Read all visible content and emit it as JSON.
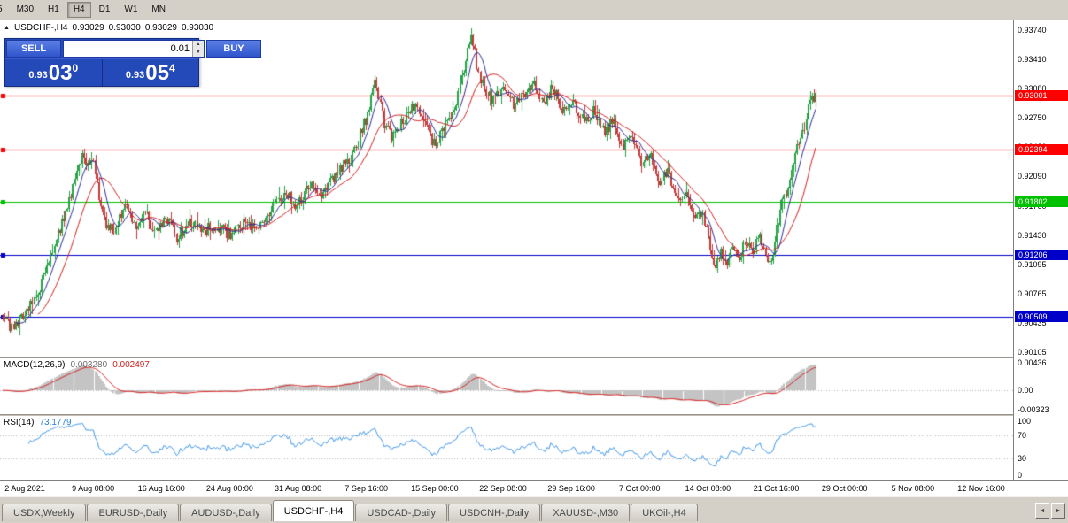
{
  "toolbar": {
    "timeframes": [
      "5",
      "M30",
      "H1",
      "H4",
      "D1",
      "W1",
      "MN"
    ],
    "active": "H4"
  },
  "chart_header": {
    "symbol": "USDCHF-,H4",
    "open": "0.93029",
    "high": "0.93030",
    "low": "0.93029",
    "close": "0.93030"
  },
  "trade_panel": {
    "collapse_icon": "▲",
    "sell_label": "SELL",
    "buy_label": "BUY",
    "volume": "0.01",
    "spinner_up": "▲",
    "spinner_down": "▼",
    "bid": {
      "prefix": "0.93",
      "big": "03",
      "sup": "0"
    },
    "ask": {
      "prefix": "0.93",
      "big": "05",
      "sup": "4"
    }
  },
  "tabs": {
    "items": [
      "USDX,Weekly",
      "EURUSD-,Daily",
      "AUDUSD-,Daily",
      "USDCHF-,H4",
      "USDCAD-,Daily",
      "USDCNH-,Daily",
      "XAUUSD-,M30",
      "UKOil-,H4"
    ],
    "active_index": 3,
    "scroll_left_icon": "◄",
    "scroll_right_icon": "►"
  },
  "chart_data": {
    "type": "candlestick",
    "symbol": "USDCHF-",
    "timeframe": "H4",
    "title": "USDCHF-,H4",
    "ohlc_current": {
      "open": 0.93029,
      "high": 0.9303,
      "low": 0.93029,
      "close": 0.9303
    },
    "ylim": [
      0.9006,
      0.9385
    ],
    "bars": 440,
    "data_width_frac": 0.808,
    "colors": {
      "up": "#26a248",
      "down": "#c23b3b",
      "ma_fast": "#2d2d96",
      "ma_slow": "#d02020",
      "macd_hist": "#c4c4c4",
      "macd_signal": "#d92222",
      "rsi_line": "#3d96e8"
    },
    "levels": [
      {
        "value": 0.93001,
        "label": "0.93001",
        "color": "#FF0000"
      },
      {
        "value": 0.92394,
        "label": "0.92394",
        "color": "#FF0000"
      },
      {
        "value": 0.91802,
        "label": "0.91802",
        "color": "#00C000"
      },
      {
        "value": 0.91206,
        "label": "0.91206",
        "color": "#0000C8"
      },
      {
        "value": 0.90509,
        "label": "0.90509",
        "color": "#0000C8"
      }
    ],
    "price_axis_labels": [
      "0.93740",
      "0.93410",
      "0.93080",
      "0.92750",
      "0.92420",
      "0.92090",
      "0.91760",
      "0.91430",
      "0.91095",
      "0.90765",
      "0.90435",
      "0.90105"
    ],
    "time_labels": [
      "2 Aug 2021",
      "9 Aug 08:00",
      "16 Aug 16:00",
      "24 Aug 00:00",
      "31 Aug 08:00",
      "7 Sep 16:00",
      "15 Sep 00:00",
      "22 Sep 08:00",
      "29 Sep 16:00",
      "7 Oct 00:00",
      "14 Oct 08:00",
      "21 Oct 16:00",
      "29 Oct 00:00",
      "5 Nov 08:00",
      "12 Nov 16:00"
    ],
    "moving_averages": [
      {
        "period": 8,
        "color": "#2d2d96"
      },
      {
        "period": 20,
        "color": "#d02020"
      }
    ],
    "indicators": {
      "macd": {
        "label": "MACD(12,26,9)",
        "value_main": "0.003280",
        "value_signal": "0.002497",
        "axis_labels": [
          {
            "value": 0.00436,
            "text": "0.00436"
          },
          {
            "value": 0,
            "text": "0.00"
          },
          {
            "value": -0.00323,
            "text": "-0.00323"
          }
        ]
      },
      "rsi": {
        "label": "RSI(14)",
        "value": "73.1779",
        "period": 14,
        "axis_labels": [
          {
            "value": 100,
            "text": "100"
          },
          {
            "value": 70,
            "text": "70"
          },
          {
            "value": 30,
            "text": "30"
          },
          {
            "value": 0,
            "text": "0"
          }
        ],
        "guides": [
          70,
          30
        ]
      }
    },
    "price_path": [
      [
        0.0,
        0.9055
      ],
      [
        0.01,
        0.9038
      ],
      [
        0.022,
        0.905
      ],
      [
        0.04,
        0.9072
      ],
      [
        0.06,
        0.912
      ],
      [
        0.08,
        0.9178
      ],
      [
        0.098,
        0.9232
      ],
      [
        0.112,
        0.922
      ],
      [
        0.125,
        0.9158
      ],
      [
        0.138,
        0.9145
      ],
      [
        0.15,
        0.918
      ],
      [
        0.163,
        0.915
      ],
      [
        0.175,
        0.9172
      ],
      [
        0.188,
        0.9142
      ],
      [
        0.2,
        0.9165
      ],
      [
        0.215,
        0.914
      ],
      [
        0.23,
        0.9158
      ],
      [
        0.245,
        0.9146
      ],
      [
        0.262,
        0.9155
      ],
      [
        0.278,
        0.9144
      ],
      [
        0.295,
        0.9156
      ],
      [
        0.312,
        0.9148
      ],
      [
        0.33,
        0.917
      ],
      [
        0.348,
        0.919
      ],
      [
        0.362,
        0.9176
      ],
      [
        0.378,
        0.9198
      ],
      [
        0.395,
        0.9188
      ],
      [
        0.412,
        0.9215
      ],
      [
        0.43,
        0.923
      ],
      [
        0.448,
        0.9278
      ],
      [
        0.458,
        0.9318
      ],
      [
        0.468,
        0.9272
      ],
      [
        0.48,
        0.9252
      ],
      [
        0.495,
        0.9275
      ],
      [
        0.508,
        0.929
      ],
      [
        0.522,
        0.926
      ],
      [
        0.533,
        0.9245
      ],
      [
        0.547,
        0.927
      ],
      [
        0.558,
        0.9292
      ],
      [
        0.568,
        0.9335
      ],
      [
        0.575,
        0.9368
      ],
      [
        0.583,
        0.9338
      ],
      [
        0.592,
        0.9305
      ],
      [
        0.603,
        0.9295
      ],
      [
        0.615,
        0.9312
      ],
      [
        0.628,
        0.929
      ],
      [
        0.641,
        0.9302
      ],
      [
        0.653,
        0.9312
      ],
      [
        0.666,
        0.9296
      ],
      [
        0.678,
        0.931
      ],
      [
        0.69,
        0.928
      ],
      [
        0.702,
        0.9294
      ],
      [
        0.715,
        0.927
      ],
      [
        0.728,
        0.9284
      ],
      [
        0.74,
        0.9258
      ],
      [
        0.752,
        0.9272
      ],
      [
        0.764,
        0.9242
      ],
      [
        0.774,
        0.9252
      ],
      [
        0.786,
        0.9222
      ],
      [
        0.797,
        0.9236
      ],
      [
        0.808,
        0.9202
      ],
      [
        0.818,
        0.9216
      ],
      [
        0.83,
        0.9182
      ],
      [
        0.841,
        0.9196
      ],
      [
        0.852,
        0.9158
      ],
      [
        0.861,
        0.9172
      ],
      [
        0.87,
        0.9128
      ],
      [
        0.876,
        0.9098
      ],
      [
        0.883,
        0.9128
      ],
      [
        0.89,
        0.9112
      ],
      [
        0.898,
        0.9132
      ],
      [
        0.906,
        0.9118
      ],
      [
        0.914,
        0.9136
      ],
      [
        0.922,
        0.9122
      ],
      [
        0.93,
        0.9142
      ],
      [
        0.938,
        0.9126
      ],
      [
        0.945,
        0.911
      ],
      [
        0.952,
        0.915
      ],
      [
        0.96,
        0.9182
      ],
      [
        0.968,
        0.9208
      ],
      [
        0.976,
        0.9238
      ],
      [
        0.984,
        0.9258
      ],
      [
        0.992,
        0.9288
      ],
      [
        1.0,
        0.9302
      ]
    ]
  }
}
